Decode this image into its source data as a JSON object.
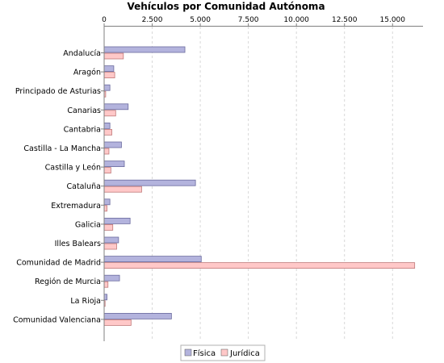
{
  "chart_data": {
    "type": "bar",
    "orientation": "horizontal",
    "title": "Vehículos por Comunidad Autónoma",
    "xlim": [
      0,
      16500
    ],
    "x_ticks": [
      0,
      2500,
      5000,
      7500,
      10000,
      12500,
      15000
    ],
    "x_tick_labels": [
      "0",
      "2.500",
      "5.000",
      "7.500",
      "10.000",
      "12.500",
      "15.000"
    ],
    "x_axis_position": "top",
    "grid": true,
    "legend_position": "bottom-center",
    "categories": [
      "Andalucía",
      "Aragón",
      "Principado de Asturias",
      "Canarias",
      "Cantabria",
      "Castilla - La Mancha",
      "Castilla y León",
      "Cataluña",
      "Extremadura",
      "Galicia",
      "Illes Balears",
      "Comunidad de Madrid",
      "Región de Murcia",
      "La Rioja",
      "Comunidad Valenciana"
    ],
    "series": [
      {
        "name": "Física",
        "color": "#b3b3dd",
        "values": [
          4200,
          500,
          300,
          1250,
          300,
          900,
          1050,
          4750,
          300,
          1350,
          750,
          5050,
          800,
          150,
          3500
        ]
      },
      {
        "name": "Jurídica",
        "color": "#ffc8c8",
        "values": [
          1000,
          550,
          80,
          600,
          400,
          250,
          350,
          1950,
          150,
          450,
          650,
          16150,
          200,
          50,
          1400
        ]
      }
    ]
  }
}
